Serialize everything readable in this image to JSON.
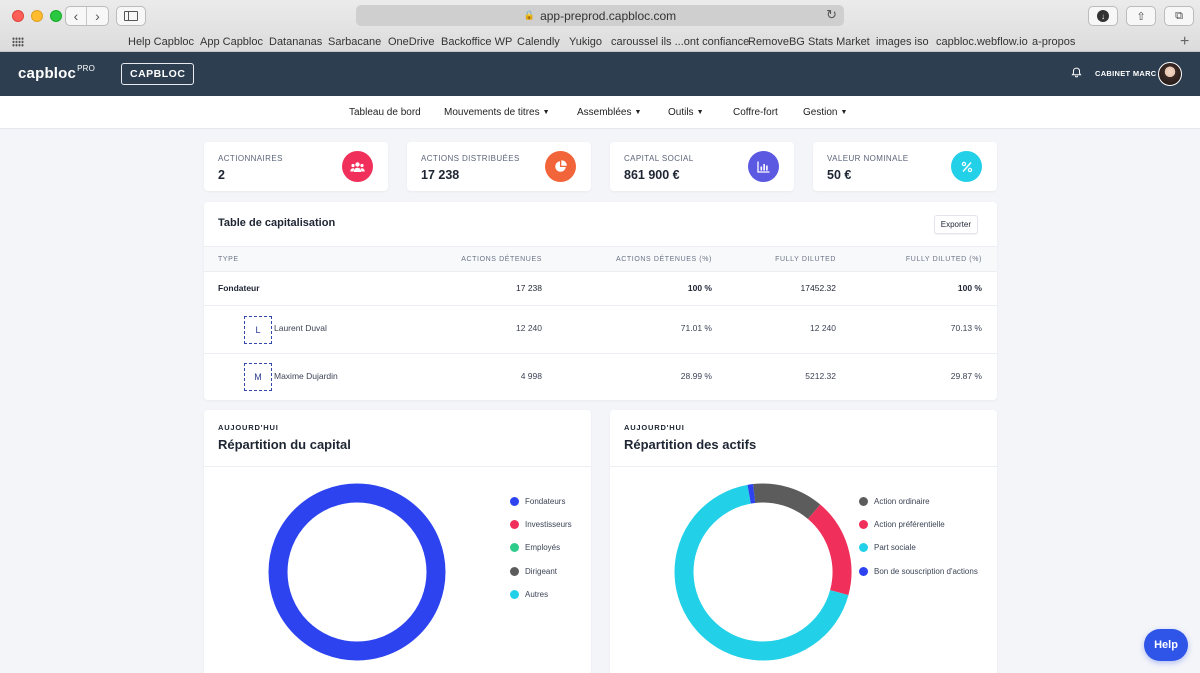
{
  "browser": {
    "url": "app-preprod.capbloc.com",
    "bookmarks": [
      "Help Capbloc",
      "App Capbloc",
      "Datananas",
      "Sarbacane",
      "OneDrive",
      "Backoffice WP",
      "Calendly",
      "Yukigo",
      "caroussel ils ...ont confiance",
      "RemoveBG",
      "Stats Market",
      "images iso",
      "capbloc.webflow.io",
      "a-propos"
    ]
  },
  "header": {
    "logo_text": "capbloc",
    "logo_sup": "PRO",
    "company_button": "CAPBLOC",
    "user_name": "CABINET MARC"
  },
  "nav": [
    {
      "label": "Tableau de bord",
      "dropdown": false
    },
    {
      "label": "Mouvements de titres",
      "dropdown": true
    },
    {
      "label": "Assemblées",
      "dropdown": true
    },
    {
      "label": "Outils",
      "dropdown": true
    },
    {
      "label": "Coffre-fort",
      "dropdown": false
    },
    {
      "label": "Gestion",
      "dropdown": true
    }
  ],
  "stats": [
    {
      "label": "ACTIONNAIRES",
      "value": "2",
      "icon": "users-icon",
      "color": "#f0305a"
    },
    {
      "label": "ACTIONS DISTRIBUÉES",
      "value": "17 238",
      "icon": "pie-chart-icon",
      "color": "#f2643a"
    },
    {
      "label": "CAPITAL SOCIAL",
      "value": "861 900 €",
      "icon": "bar-chart-icon",
      "color": "#5b58e2"
    },
    {
      "label": "VALEUR NOMINALE",
      "value": "50 €",
      "icon": "percent-icon",
      "color": "#22d0e8"
    }
  ],
  "cap_table": {
    "title": "Table de capitalisation",
    "export_label": "Exporter",
    "columns": [
      "TYPE",
      "ACTIONS DÉTENUES",
      "ACTIONS DÉTENUES (%)",
      "FULLY DILUTED",
      "FULLY DILUTED (%)"
    ],
    "group": {
      "type": "Fondateur",
      "shares": "17 238",
      "shares_pct": "100 %",
      "fd": "17452.32",
      "fd_pct": "100 %"
    },
    "rows": [
      {
        "initial": "L",
        "name": "Laurent Duval",
        "shares": "12 240",
        "shares_pct": "71.01 %",
        "fd": "12 240",
        "fd_pct": "70.13 %"
      },
      {
        "initial": "M",
        "name": "Maxime Dujardin",
        "shares": "4 998",
        "shares_pct": "28.99 %",
        "fd": "5212.32",
        "fd_pct": "29.87 %"
      }
    ]
  },
  "capital_panel": {
    "kicker": "AUJOURD'HUI",
    "title": "Répartition du capital",
    "legend": [
      {
        "label": "Fondateurs",
        "color": "#2c43ef"
      },
      {
        "label": "Investisseurs",
        "color": "#f0305a"
      },
      {
        "label": "Employés",
        "color": "#2ecc8a"
      },
      {
        "label": "Dirigeant",
        "color": "#5c5c5c"
      },
      {
        "label": "Autres",
        "color": "#22d0e8"
      }
    ]
  },
  "assets_panel": {
    "kicker": "AUJOURD'HUI",
    "title": "Répartition des actifs",
    "legend": [
      {
        "label": "Action ordinaire",
        "color": "#5c5c5c"
      },
      {
        "label": "Action préférentielle",
        "color": "#f0305a"
      },
      {
        "label": "Part sociale",
        "color": "#22d0e8"
      },
      {
        "label": "Bon de souscription d'actions",
        "color": "#2c43ef"
      }
    ]
  },
  "chart_data": [
    {
      "type": "pie",
      "title": "Répartition du capital",
      "categories": [
        "Fondateurs",
        "Investisseurs",
        "Employés",
        "Dirigeant",
        "Autres"
      ],
      "values": [
        100,
        0,
        0,
        0,
        0
      ],
      "colors": [
        "#2c43ef",
        "#f0305a",
        "#2ecc8a",
        "#5c5c5c",
        "#22d0e8"
      ],
      "legend": "right"
    },
    {
      "type": "pie",
      "title": "Répartition des actifs",
      "categories": [
        "Action ordinaire",
        "Action préférentielle",
        "Part sociale",
        "Bon de souscription d'actions"
      ],
      "values": [
        13,
        18,
        68,
        1
      ],
      "colors": [
        "#5c5c5c",
        "#f0305a",
        "#22d0e8",
        "#2c43ef"
      ],
      "legend": "right"
    }
  ],
  "help_label": "Help"
}
